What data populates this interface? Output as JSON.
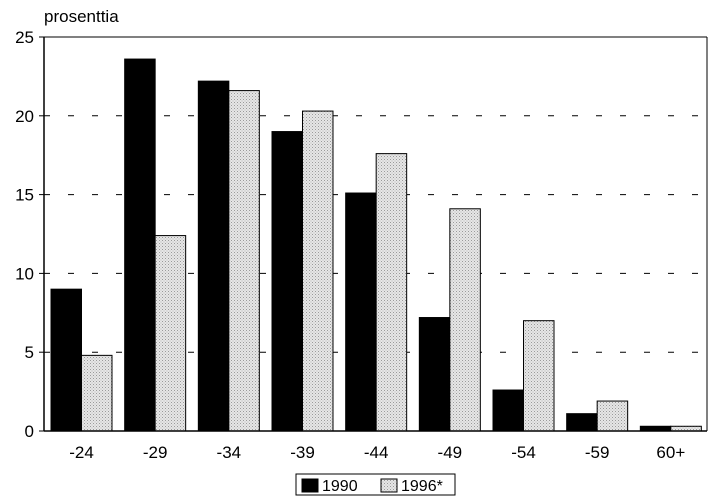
{
  "chart_data": {
    "type": "bar",
    "title": "",
    "xlabel": "",
    "ylabel": "prosenttia",
    "ylim": [
      0,
      25
    ],
    "yticks": [
      0,
      5,
      10,
      15,
      20,
      25
    ],
    "grid": "dashed horizontal",
    "legend_position": "bottom-center",
    "categories": [
      "-24",
      "-29",
      "-34",
      "-39",
      "-44",
      "-49",
      "-54",
      "-59",
      "60+"
    ],
    "series": [
      {
        "name": "1990",
        "color": "#000000",
        "values": [
          9.0,
          23.6,
          22.2,
          19.0,
          15.1,
          7.2,
          2.6,
          1.1,
          0.3
        ]
      },
      {
        "name": "1996*",
        "color": "#d9d9d9",
        "values": [
          4.8,
          12.4,
          21.6,
          20.3,
          17.6,
          14.1,
          7.0,
          1.9,
          0.3
        ]
      }
    ]
  }
}
